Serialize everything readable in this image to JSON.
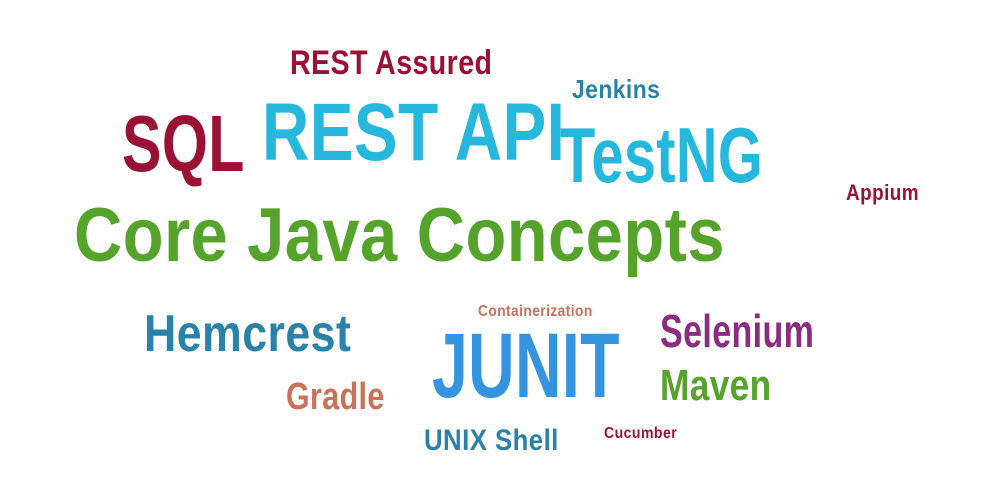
{
  "words": [
    {
      "id": "core",
      "text": "Core Java Concepts",
      "color": "#55a32b"
    },
    {
      "id": "rest",
      "text": "REST API",
      "color": "#26b8dc"
    },
    {
      "id": "testng",
      "text": "TestNG",
      "color": "#26b8dc"
    },
    {
      "id": "sql",
      "text": "SQL",
      "color": "#9a1135"
    },
    {
      "id": "junit",
      "text": "JUNIT",
      "color": "#3594e0"
    },
    {
      "id": "hemcrest",
      "text": "Hemcrest",
      "color": "#2a82a9"
    },
    {
      "id": "selenium",
      "text": "Selenium",
      "color": "#8a2c7f"
    },
    {
      "id": "maven",
      "text": "Maven",
      "color": "#55a32b"
    },
    {
      "id": "gradle",
      "text": "Gradle",
      "color": "#c9715a"
    },
    {
      "id": "restassured",
      "text": "REST Assured",
      "color": "#9a1135"
    },
    {
      "id": "jenkins",
      "text": "Jenkins",
      "color": "#2a82a9"
    },
    {
      "id": "appium",
      "text": "Appium",
      "color": "#9a1135"
    },
    {
      "id": "container",
      "text": "Containerization",
      "color": "#c9715a"
    },
    {
      "id": "unix",
      "text": "UNIX Shell",
      "color": "#2a82a9"
    },
    {
      "id": "cucumber",
      "text": "Cucumber",
      "color": "#9a1135"
    }
  ]
}
